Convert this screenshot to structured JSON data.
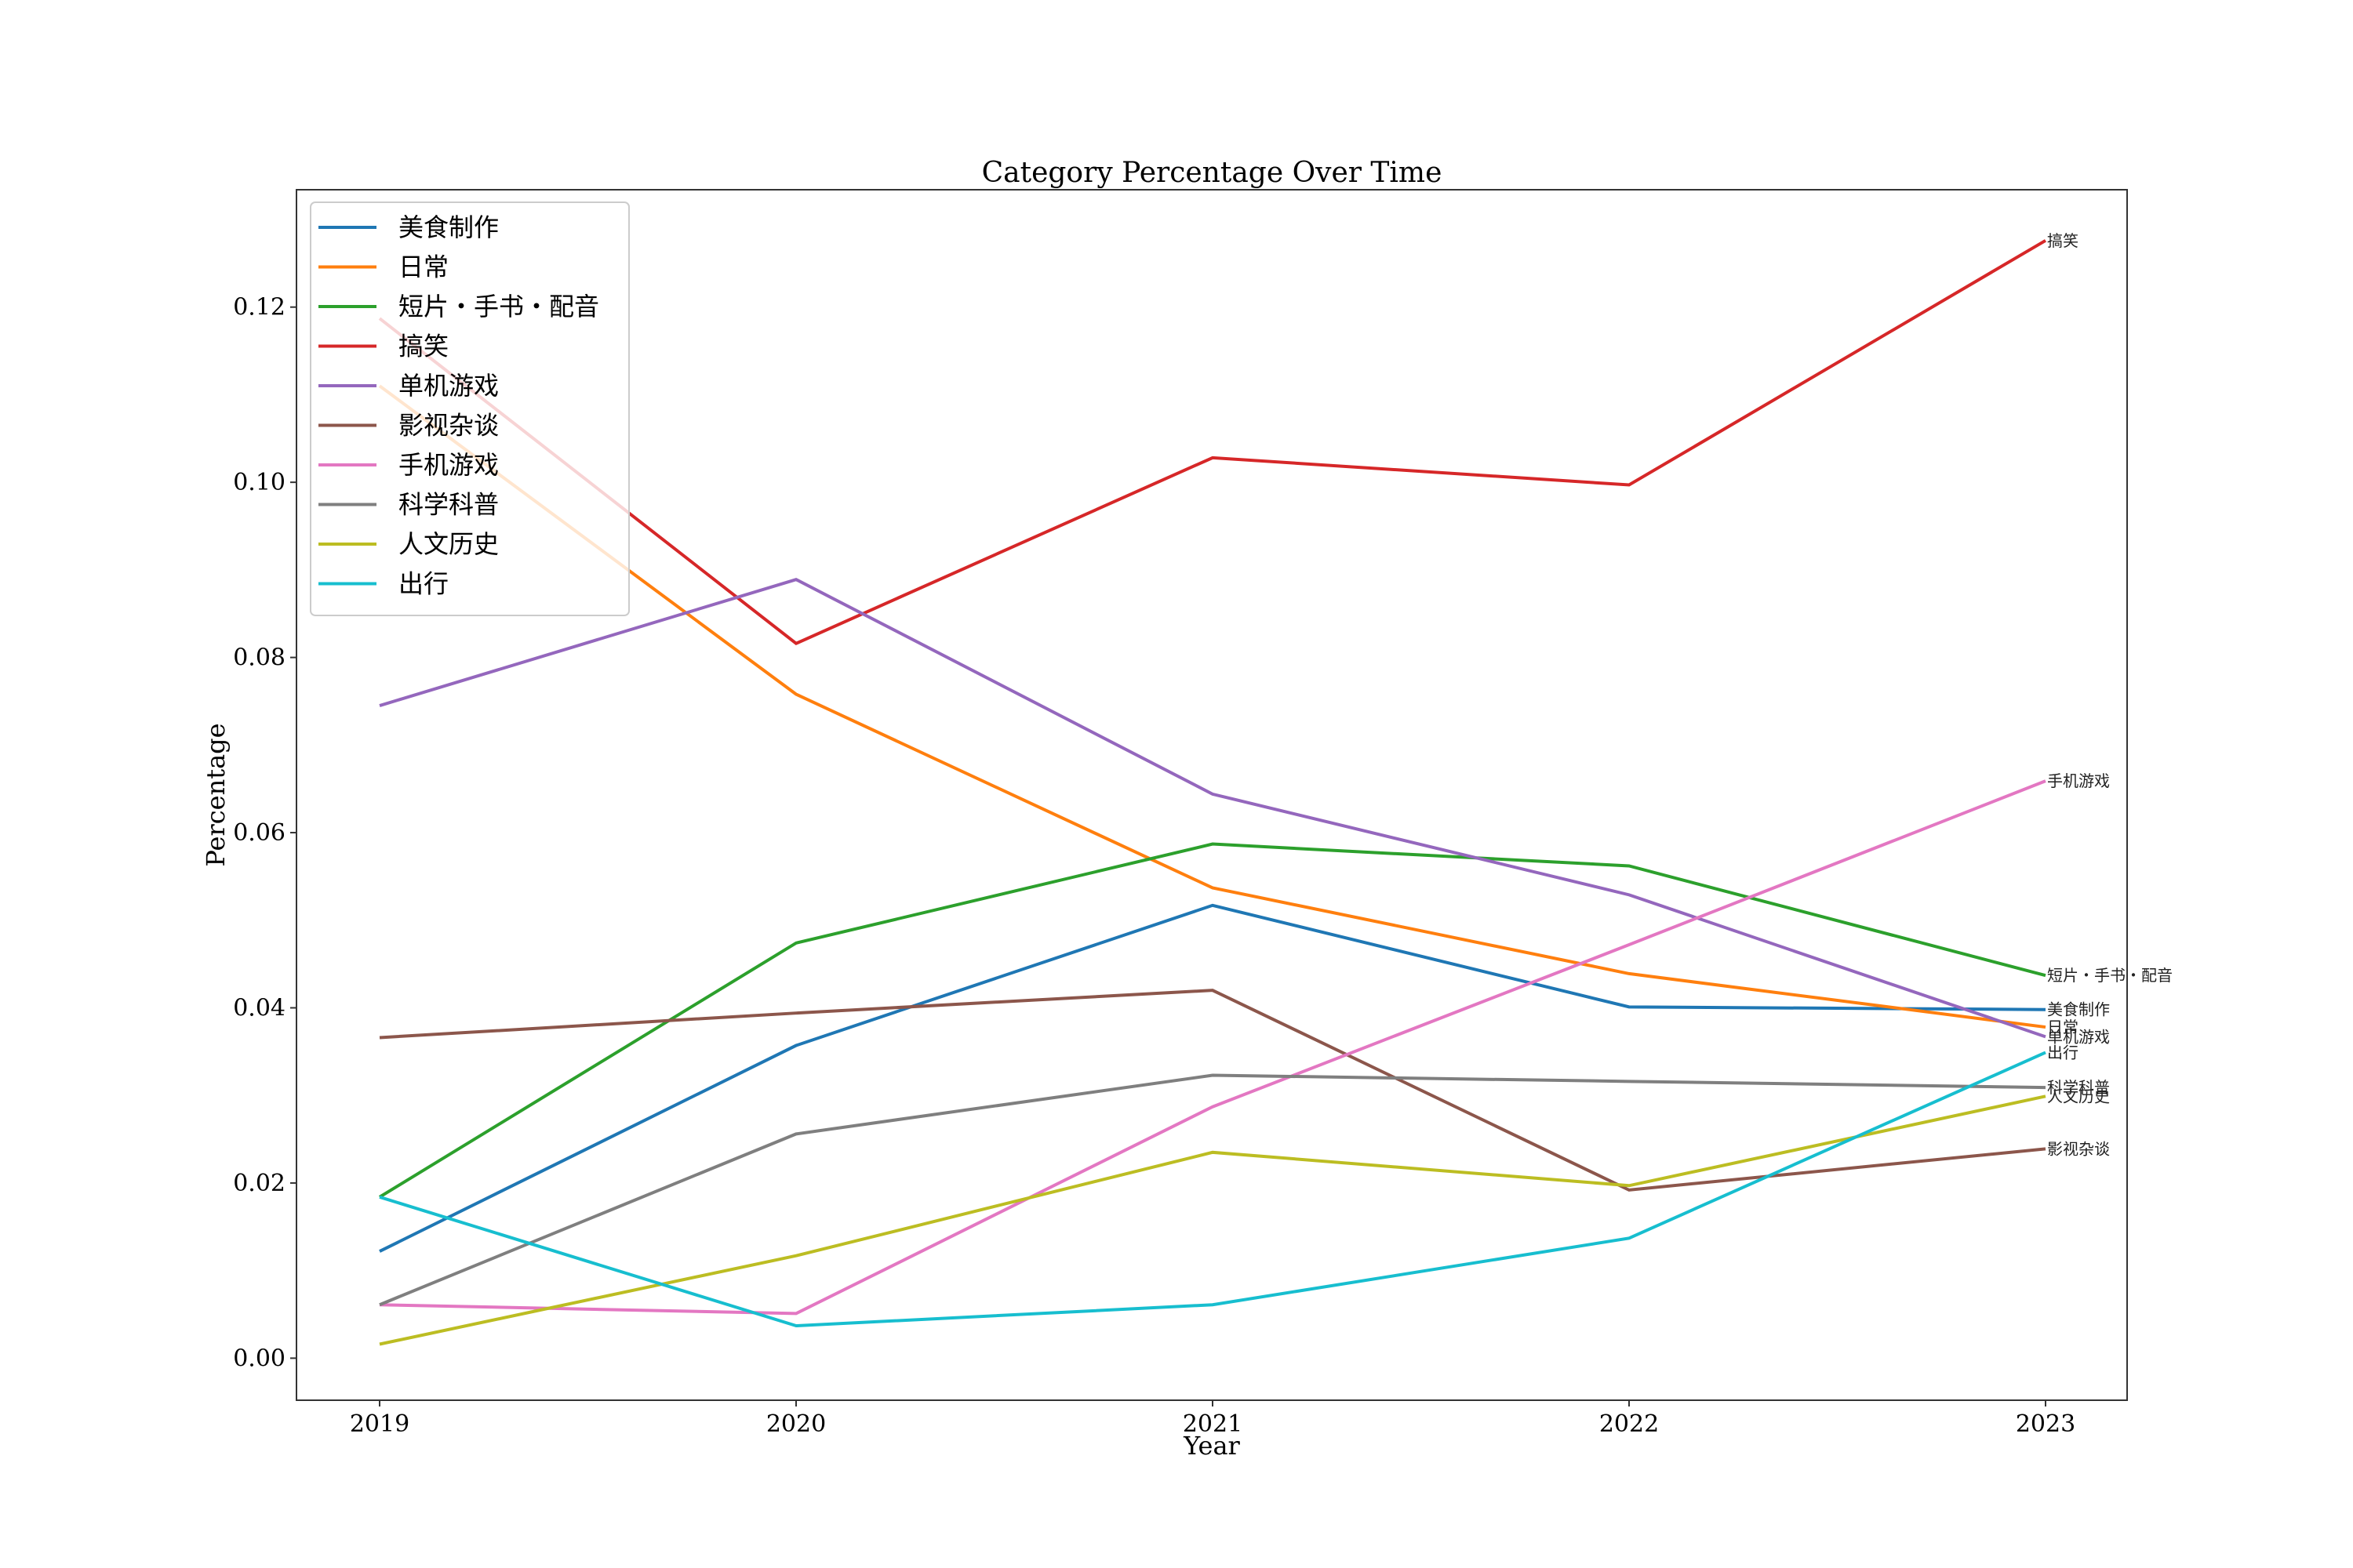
{
  "chart_data": {
    "type": "line",
    "title": "Category Percentage Over Time",
    "xlabel": "Year",
    "ylabel": "Percentage",
    "x": [
      "2019",
      "2020",
      "2021",
      "2022",
      "2023"
    ],
    "ylim": [
      -0.0048,
      0.1334
    ],
    "yticks": [
      0.0,
      0.02,
      0.04,
      0.06,
      0.08,
      0.1,
      0.12
    ],
    "ytick_labels": [
      "0.00",
      "0.02",
      "0.04",
      "0.06",
      "0.08",
      "0.10",
      "0.12"
    ],
    "grid": false,
    "legend_position": "upper-left",
    "series": [
      {
        "name": "美食制作",
        "color": "#1f77b4",
        "values": [
          0.0122,
          0.0357,
          0.0517,
          0.0401,
          0.0398
        ]
      },
      {
        "name": "日常",
        "color": "#ff7f0e",
        "values": [
          0.111,
          0.0758,
          0.0537,
          0.0439,
          0.0378
        ]
      },
      {
        "name": "短片・手书・配音",
        "color": "#2ca02c",
        "values": [
          0.0184,
          0.0474,
          0.0587,
          0.0562,
          0.0437
        ]
      },
      {
        "name": "搞笑",
        "color": "#d62728",
        "values": [
          0.1187,
          0.0816,
          0.1028,
          0.0997,
          0.1276
        ]
      },
      {
        "name": "单机游戏",
        "color": "#9467bd",
        "values": [
          0.0745,
          0.0889,
          0.0644,
          0.0529,
          0.0367
        ]
      },
      {
        "name": "影视杂谈",
        "color": "#8c564b",
        "values": [
          0.0366,
          0.0394,
          0.042,
          0.0192,
          0.0239
        ]
      },
      {
        "name": "手机游戏",
        "color": "#e377c2",
        "values": [
          0.0061,
          0.0051,
          0.0287,
          0.0472,
          0.0659
        ]
      },
      {
        "name": "科学科普",
        "color": "#7f7f7f",
        "values": [
          0.0061,
          0.0256,
          0.0323,
          0.0316,
          0.0309
        ]
      },
      {
        "name": "人文历史",
        "color": "#bcbd22",
        "values": [
          0.0016,
          0.0117,
          0.0235,
          0.0197,
          0.0299
        ]
      },
      {
        "name": "出行",
        "color": "#17becf",
        "values": [
          0.0184,
          0.0037,
          0.0061,
          0.0137,
          0.0349
        ]
      }
    ]
  }
}
